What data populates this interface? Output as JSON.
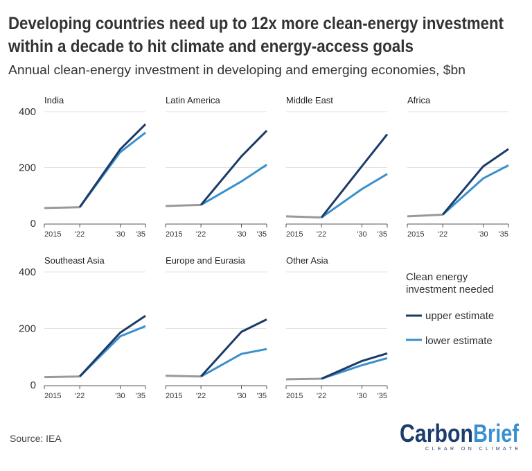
{
  "title_lines": [
    "Developing countries need up to 12x more clean-energy investment",
    "within a decade to hit climate and energy-access goals"
  ],
  "subtitle": "Annual clean-energy investment in developing and emerging economies, $bn",
  "source": "Source: IEA",
  "logo": {
    "text_a": "Carbon",
    "text_b": "Brief",
    "tagline": "CLEAR ON CLIMATE",
    "color_a": "#1d3c6e",
    "color_b": "#3a8fd0"
  },
  "legend": {
    "title_lines": [
      "Clean energy",
      "investment needed"
    ],
    "items": [
      {
        "label": "upper estimate",
        "color": "#1b3a66"
      },
      {
        "label": "lower estimate",
        "color": "#3a90cc"
      }
    ]
  },
  "colors": {
    "historical": "#999999",
    "upper": "#1b3a66",
    "lower": "#3a90cc"
  },
  "chart_data": {
    "type": "line",
    "small_multiples": true,
    "x": [
      2015,
      2022,
      2030,
      2035
    ],
    "xtick_labels": [
      "2015",
      "'22",
      "'30",
      "'35"
    ],
    "yticks": [
      0,
      200,
      400
    ],
    "ylim": [
      0,
      400
    ],
    "grid": true,
    "legend_position": "bottom-right",
    "panels": [
      {
        "name": "India",
        "historical": [
          55,
          58
        ],
        "upper": [
          58,
          265,
          355
        ],
        "lower": [
          58,
          255,
          325
        ]
      },
      {
        "name": "Latin America",
        "historical": [
          62,
          66
        ],
        "upper": [
          66,
          240,
          332
        ],
        "lower": [
          66,
          150,
          210
        ]
      },
      {
        "name": "Middle East",
        "historical": [
          25,
          21
        ],
        "upper": [
          21,
          205,
          319
        ],
        "lower": [
          21,
          123,
          177
        ]
      },
      {
        "name": "Africa",
        "historical": [
          25,
          31
        ],
        "upper": [
          31,
          204,
          266
        ],
        "lower": [
          31,
          161,
          208
        ]
      },
      {
        "name": "Southeast Asia",
        "historical": [
          28,
          30
        ],
        "upper": [
          30,
          185,
          245
        ],
        "lower": [
          30,
          172,
          208
        ]
      },
      {
        "name": "Europe and Eurasia",
        "historical": [
          33,
          30
        ],
        "upper": [
          30,
          188,
          232
        ],
        "lower": [
          30,
          110,
          127
        ]
      },
      {
        "name": "Other Asia",
        "historical": [
          20,
          22
        ],
        "upper": [
          22,
          85,
          112
        ],
        "lower": [
          22,
          70,
          95
        ]
      }
    ]
  }
}
